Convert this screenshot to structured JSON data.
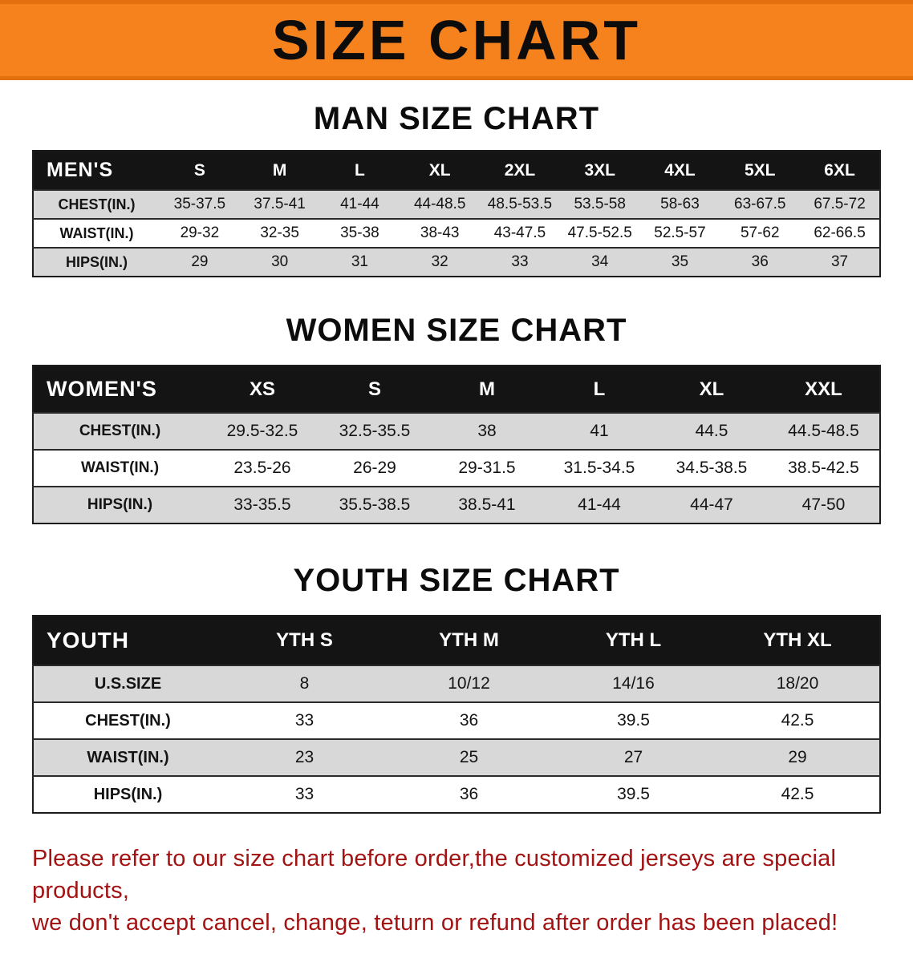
{
  "banner": {
    "title": "SIZE CHART"
  },
  "colors": {
    "banner_bg": "#f6821e",
    "table_header_bg": "#141414",
    "row_alt_bg": "#d8d8d8",
    "disclaimer_text": "#a31313"
  },
  "sections": [
    {
      "id": "men",
      "heading": "MAN SIZE CHART",
      "corner_label": "MEN'S",
      "columns": [
        "S",
        "M",
        "L",
        "XL",
        "2XL",
        "3XL",
        "4XL",
        "5XL",
        "6XL"
      ],
      "rows": [
        {
          "label": "CHEST(IN.)",
          "values": [
            "35-37.5",
            "37.5-41",
            "41-44",
            "44-48.5",
            "48.5-53.5",
            "53.5-58",
            "58-63",
            "63-67.5",
            "67.5-72"
          ]
        },
        {
          "label": "WAIST(IN.)",
          "values": [
            "29-32",
            "32-35",
            "35-38",
            "38-43",
            "43-47.5",
            "47.5-52.5",
            "52.5-57",
            "57-62",
            "62-66.5"
          ]
        },
        {
          "label": "HIPS(IN.)",
          "values": [
            "29",
            "30",
            "31",
            "32",
            "33",
            "34",
            "35",
            "36",
            "37"
          ]
        }
      ]
    },
    {
      "id": "women",
      "heading": "WOMEN SIZE CHART",
      "corner_label": "WOMEN'S",
      "columns": [
        "XS",
        "S",
        "M",
        "L",
        "XL",
        "XXL"
      ],
      "rows": [
        {
          "label": "CHEST(IN.)",
          "values": [
            "29.5-32.5",
            "32.5-35.5",
            "38",
            "41",
            "44.5",
            "44.5-48.5"
          ]
        },
        {
          "label": "WAIST(IN.)",
          "values": [
            "23.5-26",
            "26-29",
            "29-31.5",
            "31.5-34.5",
            "34.5-38.5",
            "38.5-42.5"
          ]
        },
        {
          "label": "HIPS(IN.)",
          "values": [
            "33-35.5",
            "35.5-38.5",
            "38.5-41",
            "41-44",
            "44-47",
            "47-50"
          ]
        }
      ]
    },
    {
      "id": "youth",
      "heading": "YOUTH SIZE CHART",
      "corner_label": "YOUTH",
      "columns": [
        "YTH S",
        "YTH M",
        "YTH L",
        "YTH XL"
      ],
      "rows": [
        {
          "label": "U.S.SIZE",
          "values": [
            "8",
            "10/12",
            "14/16",
            "18/20"
          ]
        },
        {
          "label": "CHEST(IN.)",
          "values": [
            "33",
            "36",
            "39.5",
            "42.5"
          ]
        },
        {
          "label": "WAIST(IN.)",
          "values": [
            "23",
            "25",
            "27",
            "29"
          ]
        },
        {
          "label": "HIPS(IN.)",
          "values": [
            "33",
            "36",
            "39.5",
            "42.5"
          ]
        }
      ]
    }
  ],
  "disclaimer": {
    "line1": "Please refer to our size chart before order,the customized jerseys are special products,",
    "line2": "we don't accept cancel, change, teturn or refund after order has been placed!"
  }
}
